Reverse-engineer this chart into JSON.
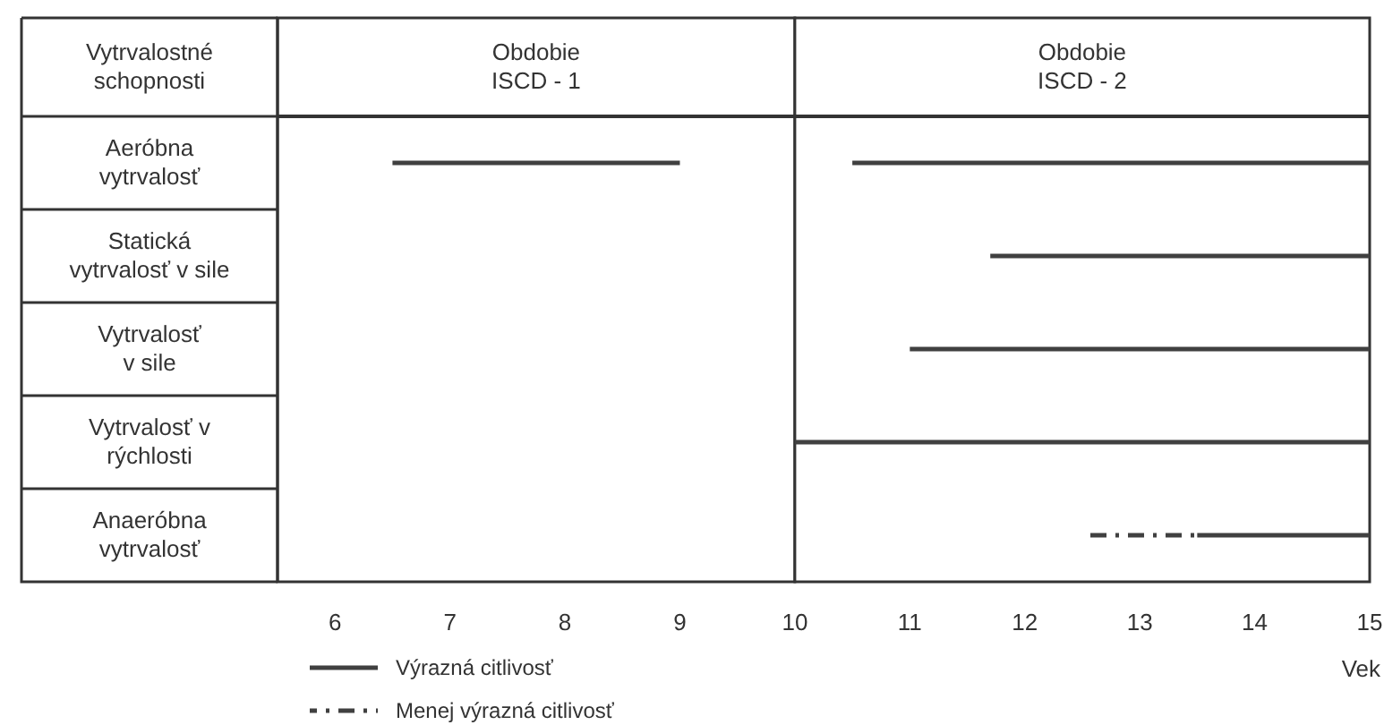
{
  "chart_data": {
    "type": "bar",
    "orientation": "horizontal",
    "ylabel": "Vytrvalostné\nschopnosti",
    "xlabel": "Vek",
    "categories": [
      "Aeróbna\nvytrvalosť",
      "Statická\nvytrvalosť v sile",
      "Vytrvalosť\nv sile",
      "Vytrvalosť v\nrýchlosti",
      "Anaeróbna\nvytrvalosť"
    ],
    "series": [
      {
        "name": "Výrazná citlivosť",
        "color": "#404040",
        "line_style": "solid",
        "base": [
          6.5,
          11.7,
          11,
          10,
          13.5
        ],
        "values": [
          2.5,
          3.3,
          4,
          5,
          1.5
        ]
      },
      {
        "color": "#404040",
        "line_style": "solid",
        "base": [
          10.5,
          null,
          null,
          null,
          null
        ],
        "values": [
          4.5,
          null,
          null,
          null,
          null
        ]
      },
      {
        "name": "Menej výrazná citlivosť",
        "color": "#404040",
        "line_style": "dashed",
        "base": [
          null,
          null,
          null,
          null,
          12.5
        ],
        "values": [
          null,
          null,
          null,
          null,
          1
        ]
      }
    ],
    "xlim": [
      5.5,
      15
    ],
    "xticks": [
      6,
      7,
      8,
      9,
      10,
      11,
      12,
      13,
      14,
      15
    ],
    "bands": [
      {
        "axis": "x",
        "from": 5.5,
        "to": 10,
        "label": "Obdobie\nISCD - 1",
        "color": "#ffffff"
      },
      {
        "axis": "x",
        "from": 10,
        "to": 15,
        "label": "Obdobie\nISCD - 2",
        "color": "#ffffff"
      }
    ],
    "legend": "bottom left",
    "grid": false
  }
}
